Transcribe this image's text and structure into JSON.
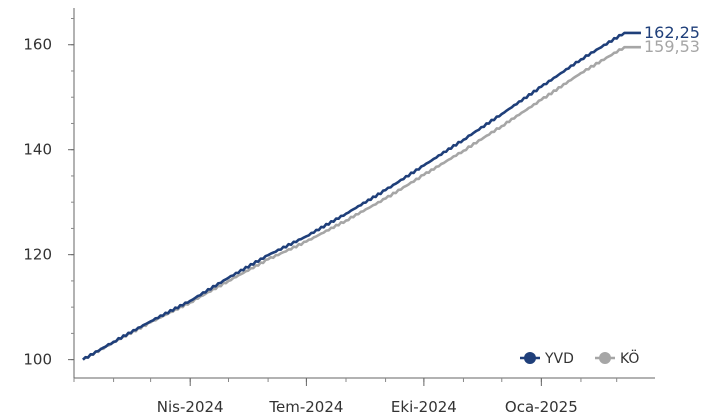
{
  "chart_data": {
    "type": "line",
    "title": "",
    "xlabel": "",
    "ylabel": "",
    "x_range": [
      "2024-01-01",
      "2025-03-31"
    ],
    "ylim": [
      96.5,
      167
    ],
    "y_ticks": [
      100,
      120,
      140,
      160
    ],
    "x_ticks": [
      {
        "date": "2024-04-01",
        "label": "Nis-2024"
      },
      {
        "date": "2024-07-01",
        "label": "Tem-2024"
      },
      {
        "date": "2024-10-01",
        "label": "Eki-2024"
      },
      {
        "date": "2025-01-01",
        "label": "Oca-2025"
      }
    ],
    "legend_position": "bottom-right",
    "series": [
      {
        "name": "YVD",
        "color": "#1f3f7a",
        "end_label": "162,25",
        "points": [
          [
            "2024-01-08",
            100.0
          ],
          [
            "2024-02-01",
            103.4
          ],
          [
            "2024-03-01",
            107.3
          ],
          [
            "2024-04-01",
            111.2
          ],
          [
            "2024-05-01",
            115.6
          ],
          [
            "2024-06-01",
            119.9
          ],
          [
            "2024-07-01",
            123.5
          ],
          [
            "2024-08-01",
            127.8
          ],
          [
            "2024-09-01",
            132.3
          ],
          [
            "2024-10-01",
            137.0
          ],
          [
            "2024-11-01",
            141.9
          ],
          [
            "2024-12-01",
            146.8
          ],
          [
            "2025-01-01",
            152.0
          ],
          [
            "2025-02-01",
            157.2
          ],
          [
            "2025-03-07",
            162.25
          ],
          [
            "2025-03-20",
            162.25
          ]
        ]
      },
      {
        "name": "KÖ",
        "color": "#a6a6a6",
        "end_label": "159,53",
        "points": [
          [
            "2024-01-08",
            100.0
          ],
          [
            "2024-02-01",
            103.3
          ],
          [
            "2024-03-01",
            107.1
          ],
          [
            "2024-04-01",
            110.9
          ],
          [
            "2024-05-01",
            115.0
          ],
          [
            "2024-06-01",
            119.1
          ],
          [
            "2024-07-01",
            122.5
          ],
          [
            "2024-08-01",
            126.5
          ],
          [
            "2024-09-01",
            130.7
          ],
          [
            "2024-10-01",
            135.2
          ],
          [
            "2024-11-01",
            139.8
          ],
          [
            "2024-12-01",
            144.5
          ],
          [
            "2025-01-01",
            149.5
          ],
          [
            "2025-02-01",
            154.6
          ],
          [
            "2025-03-07",
            159.53
          ],
          [
            "2025-03-20",
            159.53
          ]
        ]
      }
    ]
  }
}
